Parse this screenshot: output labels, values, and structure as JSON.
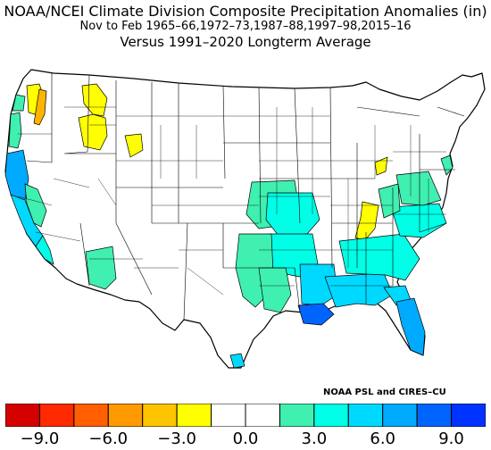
{
  "title": {
    "line1": "NOAA/NCEI Climate Division Composite Precipitation Anomalies (in)",
    "line2": "Nov to Feb  1965–66,1972–73,1987–88,1997–98,2015–16",
    "line3": "Versus 1991–2020 Longterm Average"
  },
  "credit": "NOAA PSL and CIRES–CU",
  "colorbar": {
    "bins": [
      "#d50000",
      "#ff2a00",
      "#ff5f00",
      "#ff9a00",
      "#ffc400",
      "#ffff00",
      "#ffffff",
      "#ffffff",
      "#3ff0b0",
      "#00ffe6",
      "#00d9ff",
      "#00aaff",
      "#0064ff",
      "#0033ff"
    ],
    "tick_labels": [
      "−9.0",
      "−6.0",
      "−3.0",
      "0.0",
      "3.0",
      "6.0",
      "9.0"
    ]
  },
  "map_legend_colors": {
    "dry_moderate": "#ffff00",
    "dry_strong": "#ffb400",
    "wet_light": "#3ff0b0",
    "wet_moderate": "#00ffe6",
    "wet_strong": "#00d9ff",
    "wet_very_strong": "#00aaff",
    "wet_extreme": "#0064ff"
  }
}
